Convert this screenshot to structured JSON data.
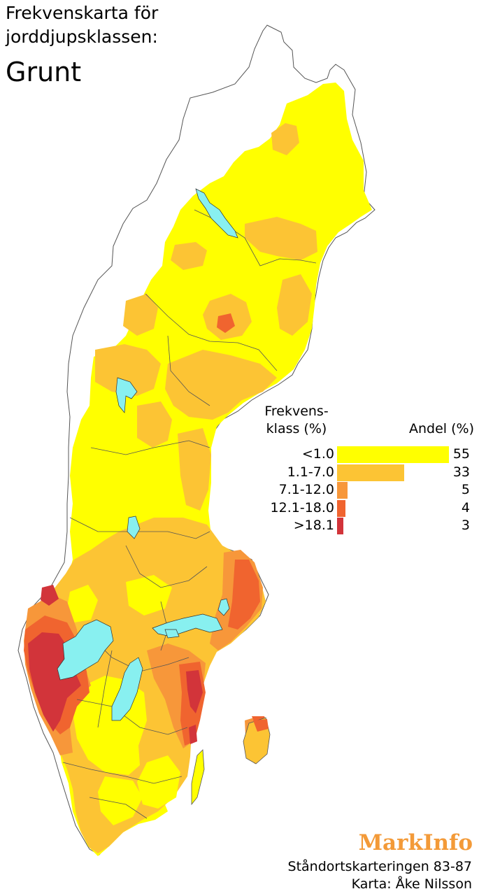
{
  "title": {
    "line1": "Frekvenskarta för",
    "line2": "jorddjupsklassen:",
    "class_name": "Grunt"
  },
  "legend": {
    "header_left_line1": "Frekvens-",
    "header_left_line2": "klass (%)",
    "header_right": "Andel (%)",
    "classes": [
      {
        "label": "<1.0",
        "andel": 55,
        "color": "#ffff00"
      },
      {
        "label": "1.1-7.0",
        "andel": 33,
        "color": "#fcc434"
      },
      {
        "label": "7.1-12.0",
        "andel": 5,
        "color": "#f7973a"
      },
      {
        "label": "12.1-18.0",
        "andel": 4,
        "color": "#f0642f"
      },
      {
        "label": ">18.1",
        "andel": 3,
        "color": "#d2343a"
      }
    ]
  },
  "colors": {
    "lake": "#88f0f0",
    "border": "#555555",
    "brand": "#f39a38"
  },
  "brand": "MarkInfo",
  "credits": {
    "line1": "Ståndortskarteringen 83-87",
    "line2": "Karta: Åke Nilsson"
  }
}
